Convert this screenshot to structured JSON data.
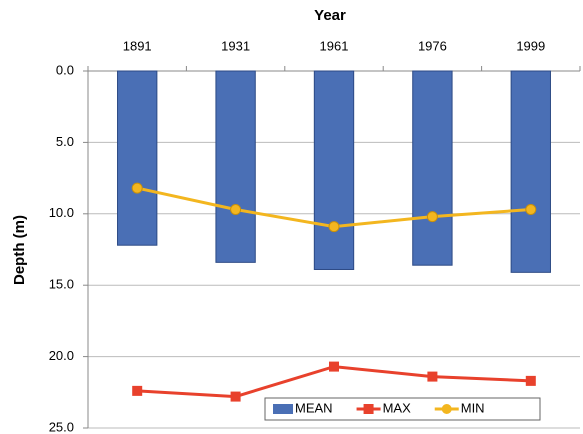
{
  "chart_data": {
    "type": "combo",
    "x_label": "Year",
    "y_label": "Depth (m)",
    "categories": [
      "1891",
      "1931",
      "1961",
      "1976",
      "1999"
    ],
    "series": [
      {
        "name": "MEAN",
        "type": "bar",
        "color": "#4a6fb5",
        "values": [
          12.2,
          13.4,
          13.9,
          13.6,
          14.1
        ]
      },
      {
        "name": "MAX",
        "type": "line",
        "marker": "square",
        "color": "#e8412c",
        "values": [
          22.4,
          22.8,
          20.7,
          21.4,
          21.7
        ]
      },
      {
        "name": "MIN",
        "type": "line",
        "marker": "circle",
        "color": "#f3b61f",
        "values": [
          8.2,
          9.7,
          10.9,
          10.2,
          9.7
        ]
      }
    ],
    "ylim": [
      0,
      25
    ],
    "y_inverted": true,
    "yticks": [
      {
        "value": 0,
        "label": "0.0"
      },
      {
        "value": 5,
        "label": "5.0"
      },
      {
        "value": 10,
        "label": "10.0"
      },
      {
        "value": 15,
        "label": "15.0"
      },
      {
        "value": 20,
        "label": "20.0"
      },
      {
        "value": 25,
        "label": "25.0"
      }
    ],
    "grid": true,
    "legend": "bottom-right"
  }
}
